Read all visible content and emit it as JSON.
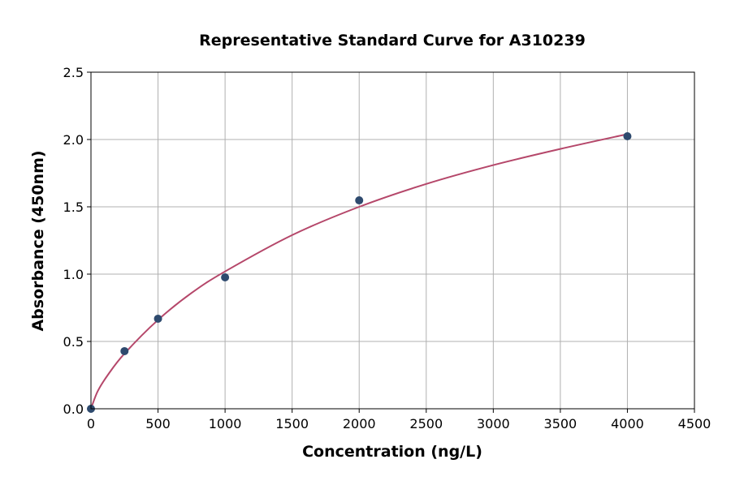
{
  "chart_data": {
    "type": "scatter",
    "title": "Representative Standard Curve for A310239",
    "xlabel": "Concentration (ng/L)",
    "ylabel": "Absorbance (450nm)",
    "xlim": [
      0,
      4500
    ],
    "ylim": [
      0,
      2.5
    ],
    "xticks": [
      0,
      500,
      1000,
      1500,
      2000,
      2500,
      3000,
      3500,
      4000,
      4500
    ],
    "yticks": [
      "0.0",
      "0.5",
      "1.0",
      "1.5",
      "2.0",
      "2.5"
    ],
    "grid": true,
    "points": {
      "x": [
        0,
        250,
        500,
        1000,
        2000,
        4000
      ],
      "y": [
        0.0,
        0.428,
        0.669,
        0.976,
        1.548,
        2.024
      ],
      "color": "#2e4a6e"
    },
    "fit_curve": {
      "x": [
        0,
        50,
        125,
        250,
        500,
        750,
        1000,
        1500,
        2000,
        2500,
        3000,
        3500,
        4000
      ],
      "y": [
        0,
        0.13,
        0.25,
        0.41,
        0.66,
        0.86,
        1.02,
        1.29,
        1.5,
        1.67,
        1.81,
        1.93,
        2.04
      ],
      "color": "#b5476a"
    }
  }
}
